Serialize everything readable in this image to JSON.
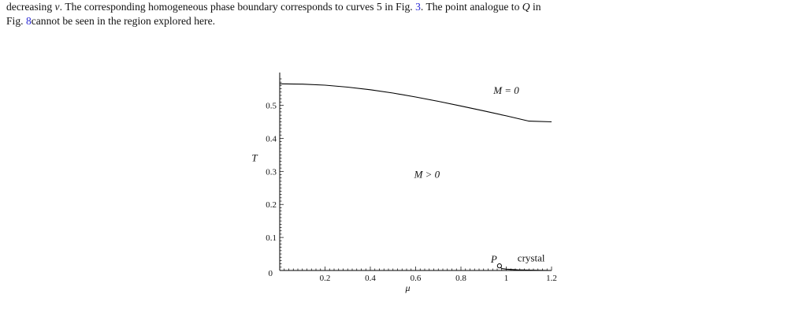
{
  "paragraph": {
    "line1_a": "decreasing ",
    "line1_nu": "ν",
    "line1_b": ". The corresponding homogeneous phase boundary corresponds to curves 5 in Fig. ",
    "line1_ref": "3",
    "line1_c": ". The point analogue to ",
    "line1_Q": "Q",
    "line1_d": " in",
    "line2_a": "Fig. ",
    "line2_ref": "8",
    "line2_b": "cannot be seen in the region explored here."
  },
  "colors": {
    "text": "#111111",
    "reference_link": "#2b2bd6",
    "axes": "#000000"
  },
  "chart_data": {
    "type": "line",
    "title": "",
    "xlabel": "μ",
    "ylabel": "T",
    "xlim": [
      0,
      1.2
    ],
    "ylim": [
      0,
      0.58
    ],
    "x_ticks": [
      {
        "value": 0.2,
        "label": "0.2"
      },
      {
        "value": 0.4,
        "label": "0.4"
      },
      {
        "value": 0.6,
        "label": "0.6"
      },
      {
        "value": 0.8,
        "label": "0.8"
      },
      {
        "value": 1.0,
        "label": "1"
      },
      {
        "value": 1.2,
        "label": "1.2"
      }
    ],
    "y_ticks": [
      {
        "value": 0.1,
        "label": "0.1"
      },
      {
        "value": 0.2,
        "label": "0.2"
      },
      {
        "value": 0.3,
        "label": "0.3"
      },
      {
        "value": 0.4,
        "label": "0.4"
      },
      {
        "value": 0.5,
        "label": "0.5"
      }
    ],
    "origin_label": "0",
    "series": [
      {
        "x": [
          0.0,
          0.1,
          0.2,
          0.3,
          0.4,
          0.5,
          0.6,
          0.7,
          0.8,
          0.9,
          1.0,
          1.1,
          1.2
        ],
        "y": [
          0.565,
          0.564,
          0.561,
          0.555,
          0.547,
          0.537,
          0.525,
          0.512,
          0.498,
          0.483,
          0.468,
          0.452,
          0.45
        ]
      },
      {
        "x": [
          0.97,
          0.98,
          1.0,
          1.05,
          1.1,
          1.15,
          1.2
        ],
        "y": [
          0.012,
          0.006,
          0.004,
          0.002,
          0.001,
          0.0005,
          0.0
        ]
      }
    ],
    "point": {
      "label": "P",
      "x": 0.97,
      "y": 0.014
    },
    "region_labels": [
      {
        "text": "M = 0",
        "x": 1.0,
        "y": 0.535
      },
      {
        "text": "M > 0",
        "x": 0.65,
        "y": 0.28
      },
      {
        "text": "crystal",
        "x": 1.11,
        "y": 0.028
      }
    ],
    "grid": false
  }
}
